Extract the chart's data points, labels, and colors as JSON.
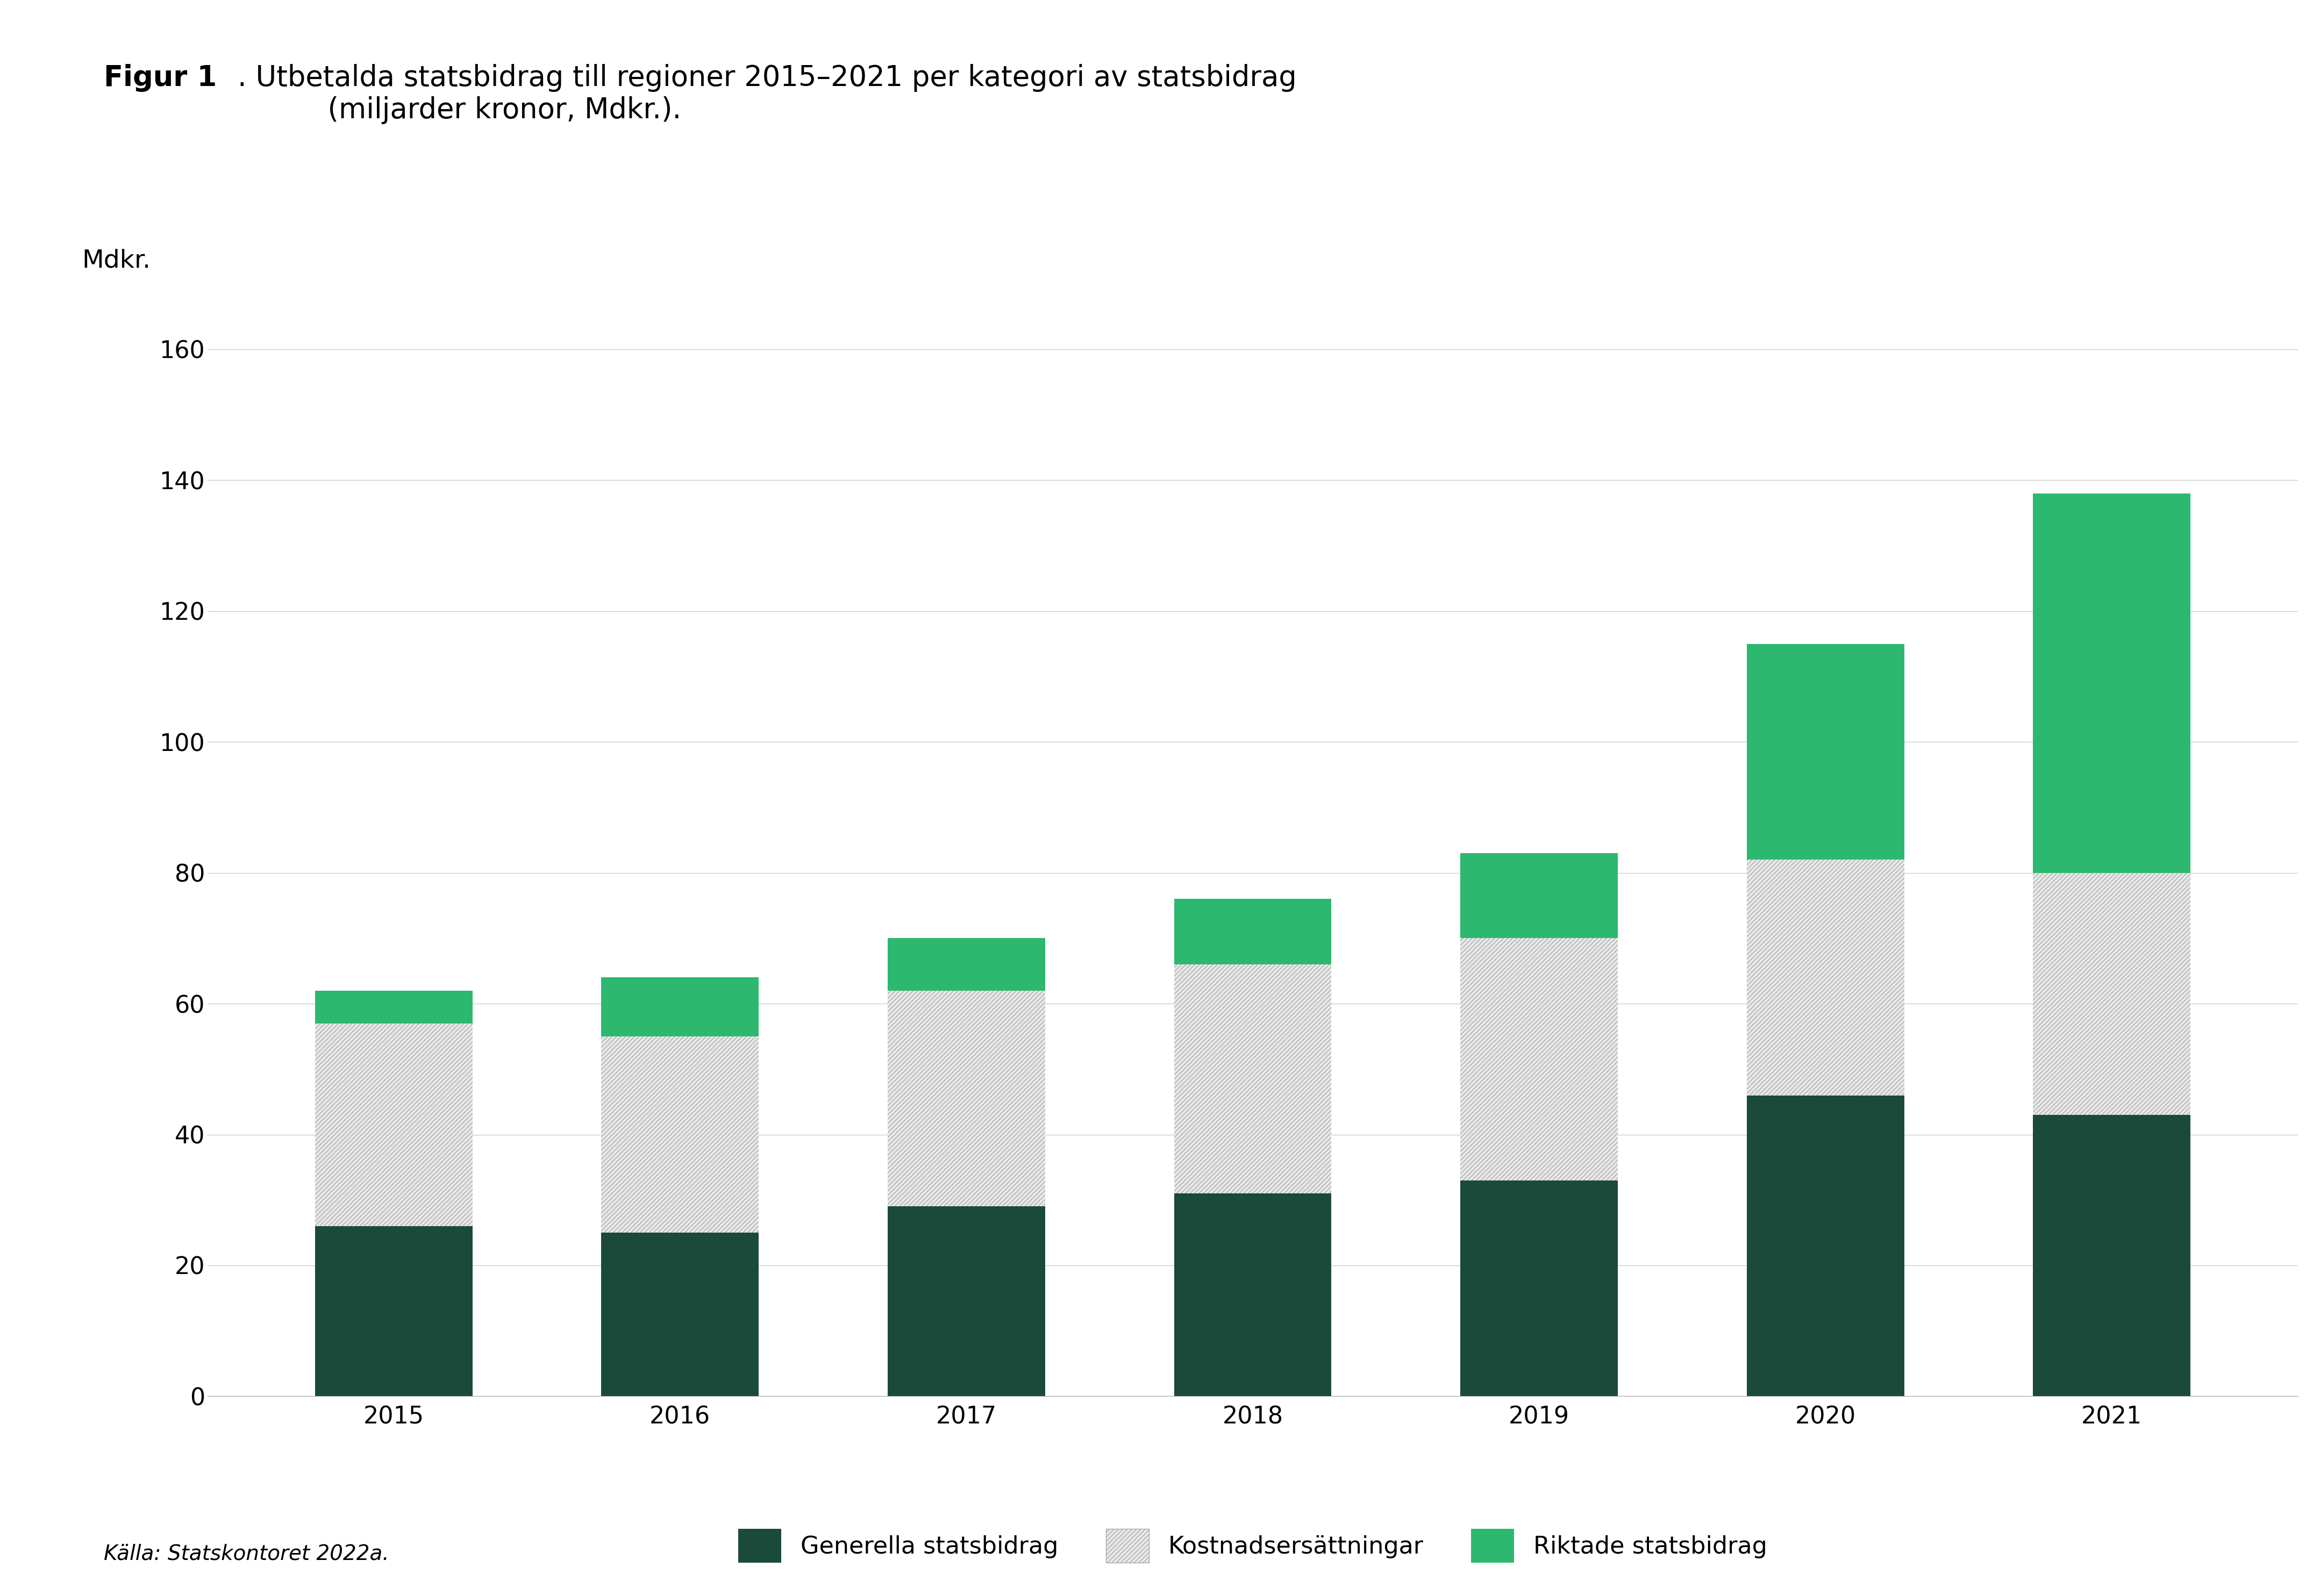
{
  "years": [
    2015,
    2016,
    2017,
    2018,
    2019,
    2020,
    2021
  ],
  "generella": [
    26,
    25,
    29,
    31,
    33,
    46,
    43
  ],
  "kostnads": [
    31,
    30,
    33,
    35,
    37,
    36,
    37
  ],
  "riktade": [
    5,
    9,
    8,
    10,
    13,
    33,
    58
  ],
  "color_generella": "#1a4a3a",
  "color_kostnads_bg": "#e8e8e8",
  "color_kostnads_hatch": "#aaaaaa",
  "color_riktade": "#2db870",
  "title_bold": "Figur 1",
  "title_rest": ". Utbetalda statsbidrag till regioner 2015–2021 per kategori av statsbidrag\n          (miljarder kronor, Mdkr.).",
  "ylabel": "Mdkr.",
  "ylim": [
    0,
    170
  ],
  "yticks": [
    0,
    20,
    40,
    60,
    80,
    100,
    120,
    140,
    160
  ],
  "legend_generella": "Generella statsbidrag",
  "legend_kostnads": "Kostnadsersättningar",
  "legend_riktade": "Riktade statsbidrag",
  "source": "Källa: Statskontoret 2022a.",
  "background_color": "#ffffff",
  "bar_width": 0.55,
  "title_fontsize": 38,
  "axis_label_fontsize": 34,
  "tick_fontsize": 32,
  "legend_fontsize": 32,
  "source_fontsize": 28
}
